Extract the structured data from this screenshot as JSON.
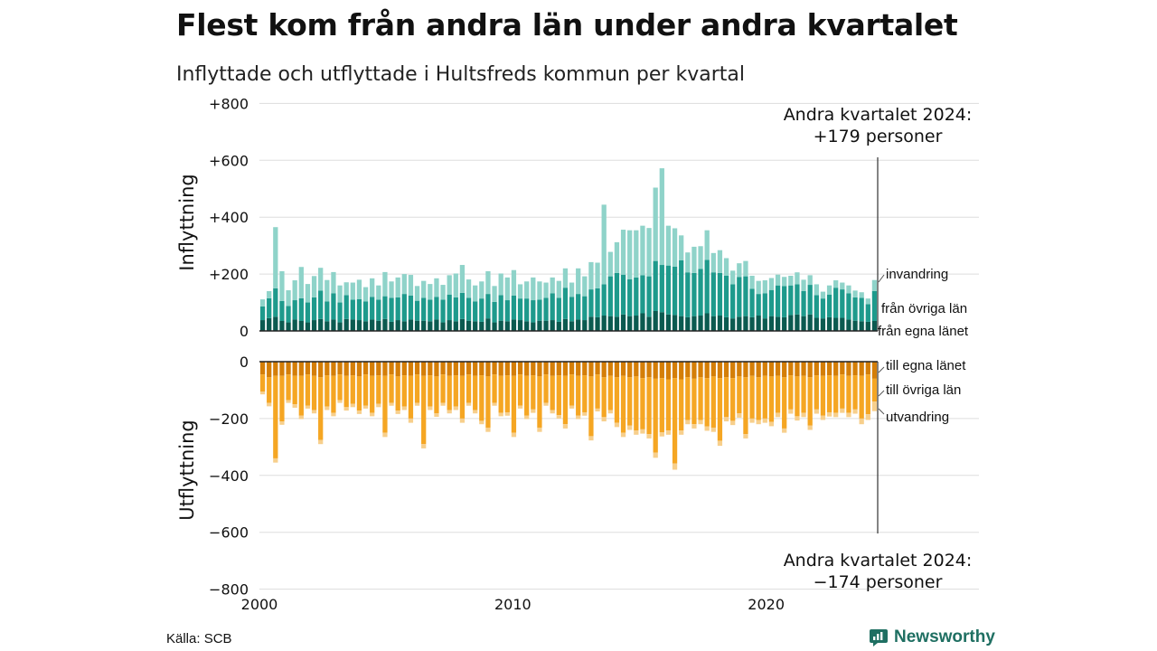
{
  "header": {
    "title": "Flest kom från andra län under andra kvartalet",
    "subtitle": "Inflyttade och utflyttade i Hultsfreds kommun per kvartal"
  },
  "footer": {
    "source": "Källa: SCB",
    "brand": "Newsworthy"
  },
  "colors": {
    "in_egna": "#0b5a50",
    "in_ovriga": "#1e9a8c",
    "in_invandring": "#8fd3c9",
    "out_egna": "#d47e08",
    "out_ovriga": "#f5a623",
    "out_utvandring": "#f7cf8c",
    "grid": "#dddddd",
    "axis": "#222222"
  },
  "chart_data": {
    "type": "bar",
    "stacked": true,
    "x_start": 2000,
    "quarters_per_year": 4,
    "ylim": [
      -800,
      800
    ],
    "yticks": [
      800,
      600,
      400,
      200,
      0,
      -200,
      -400,
      -600,
      -800
    ],
    "ytick_labels": [
      "+800",
      "+600",
      "+400",
      "+200",
      "0",
      "−200",
      "−400",
      "−600",
      "−800"
    ],
    "xticks": [
      2000,
      2010,
      2020
    ],
    "xtick_labels": [
      "2000",
      "2010",
      "2020"
    ],
    "ylabel_top": "Inflyttning",
    "ylabel_bottom": "Utflyttning",
    "inflyttning": {
      "series": [
        {
          "name": "från egna länet",
          "values": [
            38,
            45,
            50,
            35,
            30,
            40,
            35,
            30,
            38,
            42,
            34,
            40,
            30,
            42,
            40,
            38,
            34,
            40,
            36,
            42,
            32,
            38,
            34,
            40,
            36,
            36,
            34,
            40,
            30,
            38,
            34,
            42,
            36,
            34,
            32,
            44,
            30,
            36,
            34,
            40,
            38,
            34,
            30,
            36,
            36,
            38,
            32,
            42,
            34,
            40,
            38,
            50,
            48,
            54,
            52,
            50,
            58,
            52,
            54,
            62,
            50,
            70,
            66,
            58,
            56,
            52,
            48,
            52,
            54,
            62,
            52,
            54,
            48,
            44,
            50,
            52,
            48,
            54,
            44,
            52,
            50,
            48,
            56,
            58,
            52,
            58,
            46,
            44,
            48,
            46,
            46,
            40,
            36,
            34,
            32,
            35
          ]
        },
        {
          "name": "från övriga län",
          "values": [
            48,
            70,
            100,
            70,
            58,
            68,
            80,
            70,
            80,
            100,
            70,
            92,
            70,
            84,
            70,
            74,
            70,
            80,
            74,
            80,
            84,
            80,
            96,
            84,
            70,
            80,
            76,
            80,
            80,
            90,
            84,
            92,
            80,
            70,
            82,
            86,
            72,
            90,
            74,
            84,
            76,
            80,
            78,
            74,
            80,
            94,
            84,
            110,
            86,
            90,
            84,
            96,
            102,
            110,
            140,
            154,
            140,
            130,
            134,
            134,
            142,
            176,
            166,
            172,
            170,
            196,
            158,
            152,
            164,
            188,
            154,
            150,
            146,
            120,
            140,
            140,
            100,
            76,
            88,
            92,
            110,
            110,
            104,
            106,
            88,
            104,
            80,
            70,
            80,
            106,
            100,
            92,
            82,
            82,
            62,
            105
          ]
        },
        {
          "name": "invandring",
          "values": [
            25,
            25,
            215,
            105,
            55,
            70,
            110,
            65,
            75,
            80,
            75,
            75,
            60,
            45,
            60,
            68,
            50,
            65,
            50,
            85,
            58,
            70,
            70,
            73,
            52,
            60,
            55,
            65,
            52,
            68,
            84,
            98,
            65,
            56,
            60,
            80,
            56,
            76,
            80,
            90,
            50,
            60,
            80,
            64,
            54,
            56,
            60,
            68,
            50,
            90,
            70,
            96,
            90,
            280,
            86,
            108,
            158,
            172,
            166,
            174,
            170,
            258,
            340,
            140,
            135,
            88,
            70,
            92,
            80,
            104,
            68,
            80,
            62,
            48,
            48,
            54,
            46,
            46,
            46,
            42,
            38,
            32,
            34,
            42,
            40,
            34,
            38,
            24,
            32,
            26,
            24,
            28,
            24,
            20,
            20,
            39
          ]
        }
      ]
    },
    "utflyttning": {
      "series": [
        {
          "name": "till egna länet",
          "values": [
            45,
            55,
            50,
            50,
            45,
            50,
            50,
            45,
            50,
            55,
            48,
            50,
            45,
            50,
            48,
            52,
            45,
            50,
            48,
            50,
            45,
            52,
            48,
            50,
            45,
            50,
            48,
            52,
            45,
            50,
            48,
            50,
            45,
            50,
            48,
            52,
            45,
            50,
            48,
            50,
            45,
            50,
            48,
            52,
            45,
            50,
            48,
            50,
            45,
            50,
            48,
            52,
            45,
            55,
            50,
            55,
            50,
            55,
            52,
            58,
            55,
            60,
            58,
            62,
            58,
            62,
            55,
            60,
            55,
            58,
            52,
            58,
            55,
            58,
            52,
            55,
            50,
            55,
            50,
            52,
            50,
            55,
            48,
            52,
            50,
            55,
            48,
            50,
            48,
            50,
            45,
            50,
            48,
            50,
            45,
            60
          ]
        },
        {
          "name": "till övriga län",
          "values": [
            60,
            90,
            290,
            160,
            90,
            100,
            140,
            110,
            120,
            220,
            110,
            130,
            90,
            110,
            100,
            120,
            110,
            130,
            100,
            200,
            100,
            120,
            110,
            150,
            100,
            240,
            110,
            130,
            100,
            120,
            110,
            150,
            100,
            120,
            160,
            180,
            100,
            130,
            130,
            200,
            110,
            140,
            120,
            180,
            100,
            120,
            140,
            170,
            110,
            140,
            130,
            210,
            120,
            140,
            120,
            160,
            200,
            170,
            190,
            180,
            200,
            260,
            190,
            180,
            300,
            180,
            150,
            160,
            150,
            170,
            180,
            220,
            140,
            150,
            130,
            200,
            150,
            150,
            150,
            160,
            130,
            180,
            120,
            140,
            130,
            170,
            120,
            140,
            130,
            130,
            120,
            130,
            120,
            150,
            140,
            80
          ]
        },
        {
          "name": "utvandring",
          "values": [
            10,
            12,
            15,
            12,
            10,
            12,
            12,
            10,
            12,
            15,
            12,
            12,
            10,
            12,
            12,
            12,
            10,
            12,
            12,
            15,
            10,
            12,
            12,
            15,
            10,
            15,
            12,
            12,
            10,
            12,
            12,
            15,
            10,
            12,
            12,
            15,
            10,
            12,
            12,
            15,
            10,
            12,
            12,
            15,
            10,
            12,
            12,
            15,
            10,
            12,
            12,
            15,
            10,
            15,
            12,
            15,
            15,
            15,
            15,
            15,
            15,
            18,
            15,
            15,
            22,
            15,
            15,
            15,
            15,
            15,
            15,
            18,
            15,
            15,
            15,
            15,
            15,
            15,
            15,
            15,
            15,
            15,
            15,
            15,
            15,
            15,
            15,
            15,
            15,
            15,
            15,
            15,
            15,
            20,
            20,
            34
          ]
        }
      ]
    },
    "annotations": {
      "top": "Andra kvartalet 2024:\n+179 personer",
      "bottom": "Andra kvartalet 2024:\n−174 personer"
    }
  }
}
